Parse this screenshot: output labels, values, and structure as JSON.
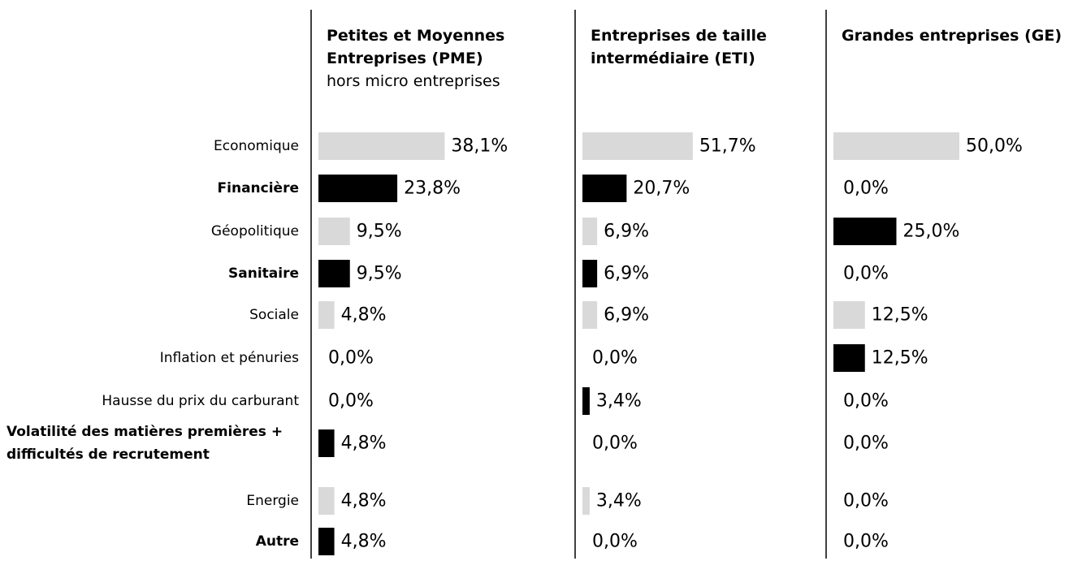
{
  "chart_data": {
    "type": "bar",
    "orientation": "horizontal",
    "categories": [
      "Economique",
      "Financière",
      "Géopolitique",
      "Sanitaire",
      "Sociale",
      "Inflation et pénuries",
      "Hausse du prix du carburant",
      "Volatilité des matières premières + difficultés de recrutement",
      "Energie",
      "Autre"
    ],
    "bold_categories": [
      false,
      true,
      false,
      true,
      false,
      false,
      false,
      true,
      false,
      true
    ],
    "series": [
      {
        "name": "Petites et Moyennes Entreprises (PME)",
        "subtitle": "hors micro entreprises",
        "values": [
          38.1,
          23.8,
          9.5,
          9.5,
          4.8,
          0.0,
          0.0,
          4.8,
          4.8,
          4.8
        ],
        "value_labels": [
          "38,1%",
          "23,8%",
          "9,5%",
          "9,5%",
          "4,8%",
          "0,0%",
          "0,0%",
          "4,8%",
          "4,8%",
          "4,8%"
        ],
        "colors": [
          "#d9d9d9",
          "#000000",
          "#d9d9d9",
          "#000000",
          "#d9d9d9",
          "#d9d9d9",
          "#d9d9d9",
          "#000000",
          "#d9d9d9",
          "#000000"
        ],
        "xlim": [
          0,
          38
        ]
      },
      {
        "name": "Entreprises de taille intermédiaire (ETI)",
        "values": [
          51.7,
          20.7,
          6.9,
          6.9,
          6.9,
          0.0,
          3.4,
          0.0,
          3.4,
          0.0
        ],
        "value_labels": [
          "51,7%",
          "20,7%",
          "6,9%",
          "6,9%",
          "6,9%",
          "0,0%",
          "3,4%",
          "0,0%",
          "3,4%",
          "0,0%"
        ],
        "colors": [
          "#d9d9d9",
          "#000000",
          "#d9d9d9",
          "#000000",
          "#d9d9d9",
          "#d9d9d9",
          "#000000",
          "#000000",
          "#d9d9d9",
          "#000000"
        ],
        "xlim": [
          0,
          59
        ]
      },
      {
        "name": "Grandes entreprises (GE)",
        "values": [
          50.0,
          0.0,
          25.0,
          0.0,
          12.5,
          12.5,
          0.0,
          0.0,
          0.0,
          0.0
        ],
        "value_labels": [
          "50,0%",
          "0,0%",
          "25,0%",
          "0,0%",
          "12,5%",
          "12,5%",
          "0,0%",
          "0,0%",
          "0,0%",
          "0,0%"
        ],
        "colors": [
          "#d9d9d9",
          "#000000",
          "#000000",
          "#000000",
          "#d9d9d9",
          "#000000",
          "#000000",
          "#000000",
          "#d9d9d9",
          "#000000"
        ],
        "xlim": [
          0,
          50
        ]
      }
    ]
  }
}
